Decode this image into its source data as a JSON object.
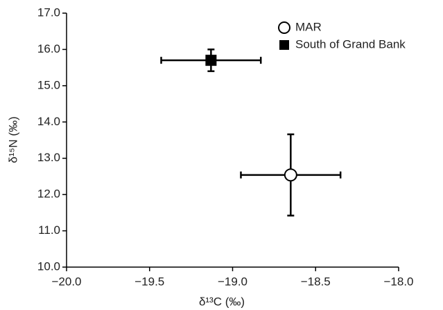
{
  "chart_data": {
    "type": "scatter",
    "xlabel": "δ¹³C (‰)",
    "ylabel": "δ¹⁵N (‰)",
    "xlim": [
      -20,
      -18
    ],
    "ylim": [
      10,
      17
    ],
    "xticks": [
      {
        "value": -20,
        "label": "−20.0"
      },
      {
        "value": -19.5,
        "label": "−19.5"
      },
      {
        "value": -19,
        "label": "−19.0"
      },
      {
        "value": -18.5,
        "label": "−18.5"
      },
      {
        "value": -18,
        "label": "−18.0"
      }
    ],
    "yticks": [
      {
        "value": 10,
        "label": "10.0"
      },
      {
        "value": 11,
        "label": "11.0"
      },
      {
        "value": 12,
        "label": "12.0"
      },
      {
        "value": 13,
        "label": "13.0"
      },
      {
        "value": 14,
        "label": "14.0"
      },
      {
        "value": 15,
        "label": "15.0"
      },
      {
        "value": 16,
        "label": "16.0"
      },
      {
        "value": 17,
        "label": "17.0"
      }
    ],
    "legend": "upper right",
    "series": [
      {
        "name": "MAR",
        "marker": "open-circle",
        "color": "#000000",
        "x": [
          -18.65
        ],
        "values": [
          12.54
        ],
        "xerr": [
          0.3
        ],
        "yerr": [
          1.12
        ]
      },
      {
        "name": "South of Grand Bank",
        "marker": "square",
        "color": "#000000",
        "x": [
          -19.13
        ],
        "values": [
          15.7
        ],
        "xerr": [
          0.3
        ],
        "yerr": [
          0.3
        ]
      }
    ]
  }
}
